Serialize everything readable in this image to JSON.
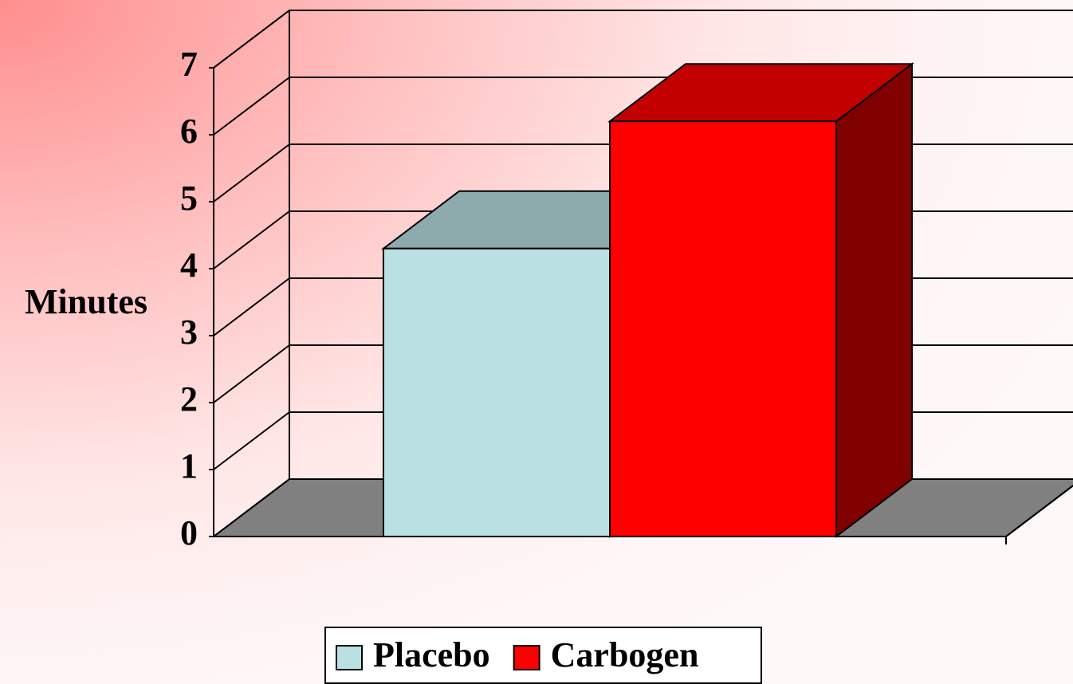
{
  "chart_data": {
    "type": "bar3d",
    "y_label": "Minutes",
    "categories": [
      null
    ],
    "series": [
      {
        "name": "Placebo",
        "color": "#b9e0e3",
        "values": [
          4.3
        ]
      },
      {
        "name": "Carbogen",
        "color": "#ff0000",
        "values": [
          6.2
        ]
      }
    ],
    "ylim": [
      0,
      7
    ],
    "yticks": [
      0,
      1,
      2,
      3,
      4,
      5,
      6,
      7
    ],
    "grid": true,
    "legend": "bottom"
  }
}
